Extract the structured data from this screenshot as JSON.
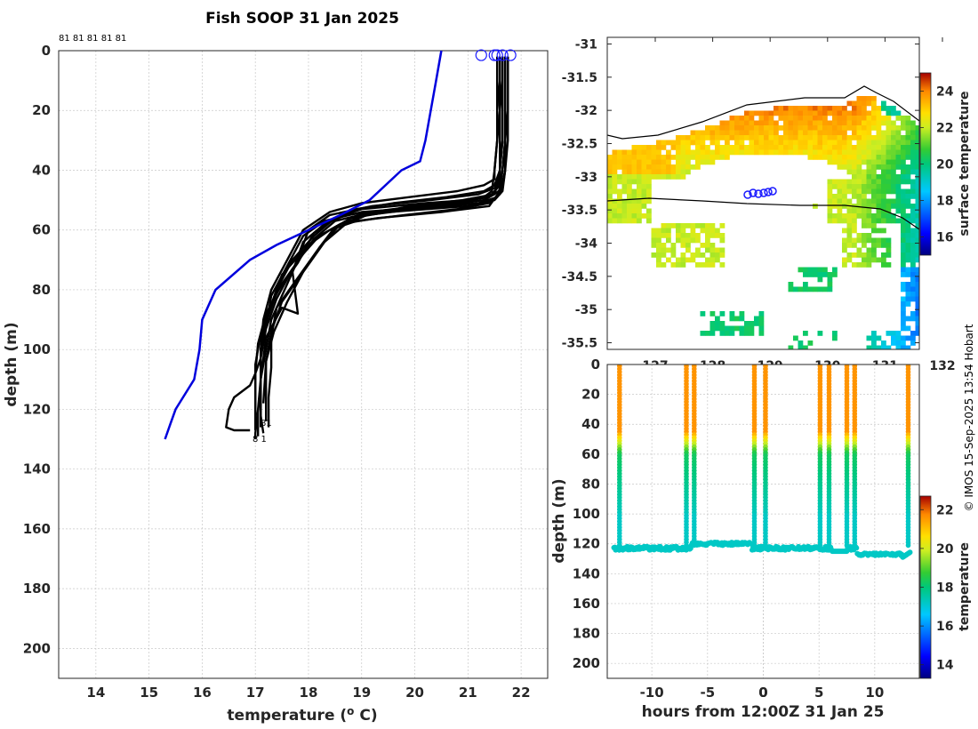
{
  "title": "Fish SOOP 31 Jan 2025",
  "copyright": "© IMOS 15-Sep-2025 13:54 Hobart",
  "chart_data": [
    {
      "type": "line",
      "name": "temperature-profiles",
      "xlabel": "temperature (o C)",
      "xlabel_main": "temperature (",
      "xlabel_sup": "o",
      "xlabel_end": " C)",
      "ylabel": "depth (m)",
      "xlim": [
        13.3,
        22.5
      ],
      "ylim": [
        0,
        210
      ],
      "xticks": [
        "14",
        "15",
        "16",
        "17",
        "18",
        "19",
        "20",
        "21",
        "22"
      ],
      "yticks": [
        "0",
        "20",
        "40",
        "60",
        "80",
        "100",
        "120",
        "140",
        "160",
        "180",
        "200"
      ],
      "top_labels": "81 81 81 81 81",
      "bottom_label_a": "81",
      "bottom_label_b": "8 1",
      "climatology": {
        "color": "#0000dd",
        "temperature": [
          20.5,
          20.4,
          20.3,
          20.2,
          20.1,
          19.75,
          19.15,
          18.6,
          18.0,
          17.4,
          16.9,
          16.25,
          16.0,
          15.95,
          15.85,
          15.5,
          15.4,
          15.3
        ],
        "depth": [
          0,
          10,
          20,
          30,
          37,
          40,
          50,
          55,
          60,
          65,
          70,
          80,
          90,
          100,
          110,
          120,
          125,
          130
        ]
      },
      "profiles": [
        {
          "temperature": [
            21.55,
            21.55,
            21.6,
            21.6,
            21.6,
            21.55,
            21.5,
            21.2,
            20.3,
            19.2,
            18.4,
            18.0,
            17.8,
            17.55,
            17.3,
            17.2,
            17.1,
            17.05,
            17.0,
            17.0
          ],
          "depth": [
            2,
            10,
            20,
            30,
            40,
            44,
            46,
            48,
            50,
            52,
            55,
            60,
            70,
            80,
            90,
            100,
            110,
            120,
            128,
            130
          ]
        },
        {
          "temperature": [
            21.65,
            21.65,
            21.65,
            21.65,
            21.6,
            21.55,
            21.5,
            21.3,
            20.5,
            19.0,
            18.3,
            17.9,
            17.6,
            17.3,
            17.2,
            17.1,
            17.1,
            17.1,
            17.15
          ],
          "depth": [
            2,
            10,
            20,
            30,
            40,
            45,
            48,
            50,
            52,
            54,
            57,
            62,
            72,
            82,
            92,
            102,
            112,
            122,
            128
          ]
        },
        {
          "temperature": [
            21.7,
            21.7,
            21.7,
            21.7,
            21.65,
            21.6,
            21.55,
            21.2,
            20.0,
            19.1,
            18.6,
            18.3,
            17.9,
            17.5,
            17.3,
            17.2,
            17.2,
            17.2
          ],
          "depth": [
            2,
            10,
            20,
            30,
            40,
            46,
            49,
            51,
            53,
            55,
            58,
            64,
            74,
            84,
            94,
            104,
            114,
            124
          ]
        },
        {
          "temperature": [
            21.75,
            21.75,
            21.75,
            21.7,
            21.7,
            21.65,
            21.5,
            21.0,
            19.5,
            18.8,
            18.5,
            18.2,
            17.8,
            17.4,
            17.3,
            17.3,
            17.25,
            17.25
          ],
          "depth": [
            2,
            10,
            20,
            30,
            40,
            47,
            50,
            52,
            54,
            56,
            59,
            66,
            76,
            86,
            96,
            106,
            116,
            126
          ]
        },
        {
          "temperature": [
            21.6,
            21.6,
            21.6,
            21.55,
            21.5,
            21.45,
            21.3,
            21.0,
            20.2,
            19.0,
            18.5,
            18.1,
            17.7,
            17.4,
            17.2,
            17.1,
            17.1,
            17.1
          ],
          "depth": [
            2,
            10,
            20,
            30,
            40,
            47,
            49,
            50,
            51,
            53,
            56,
            62,
            70,
            80,
            90,
            100,
            110,
            125
          ]
        },
        {
          "temperature": [
            21.7,
            21.7,
            21.7,
            21.7,
            21.7,
            21.6,
            21.4,
            20.8,
            19.8,
            18.9,
            18.4,
            18.0,
            17.5,
            17.3,
            17.1,
            17.0,
            17.0,
            17.0
          ],
          "depth": [
            2,
            10,
            20,
            30,
            40,
            48,
            51,
            53,
            55,
            57,
            60,
            65,
            75,
            85,
            95,
            105,
            115,
            127
          ]
        },
        {
          "temperature": [
            21.65,
            21.65,
            21.6,
            21.6,
            21.6,
            21.6,
            21.4,
            20.5,
            19.3,
            18.6,
            18.2,
            17.9,
            17.5,
            17.2,
            17.05,
            17.0,
            17.0
          ],
          "depth": [
            2,
            10,
            20,
            30,
            40,
            47,
            52,
            54,
            56,
            58,
            62,
            68,
            78,
            88,
            98,
            108,
            122
          ]
        },
        {
          "temperature": [
            21.75,
            21.75,
            21.75,
            21.75,
            21.7,
            21.65,
            21.5,
            20.9,
            19.9,
            19.1,
            18.7,
            18.3,
            17.9,
            17.6,
            17.35,
            17.2,
            17.15
          ],
          "depth": [
            2,
            10,
            20,
            30,
            40,
            46,
            48,
            50,
            52,
            55,
            58,
            64,
            74,
            84,
            94,
            104,
            118
          ]
        },
        {
          "temperature": [
            21.6,
            21.6,
            21.6,
            21.6,
            21.6,
            21.5,
            21.3,
            20.6,
            19.6,
            18.9,
            18.5,
            18.1,
            17.8,
            17.4,
            17.2,
            17.1,
            17.1,
            17.05,
            17.05
          ],
          "depth": [
            2,
            10,
            20,
            30,
            40,
            45,
            47,
            49,
            51,
            53,
            56,
            61,
            71,
            81,
            91,
            101,
            111,
            121,
            129
          ]
        },
        {
          "temperature": [
            21.55,
            21.55,
            21.55,
            21.55,
            21.5,
            21.5,
            21.3,
            20.8,
            19.9,
            19.0,
            18.4,
            17.9,
            17.6,
            17.3,
            17.15,
            17.1,
            17.1
          ],
          "depth": [
            2,
            10,
            20,
            30,
            40,
            43,
            45,
            47,
            49,
            51,
            54,
            60,
            70,
            80,
            90,
            100,
            112
          ]
        },
        {
          "temperature": [
            21.7,
            21.7,
            21.7,
            21.7,
            21.65,
            21.6,
            21.45,
            21.1,
            20.1,
            19.2,
            18.5,
            18.1,
            17.7,
            17.4,
            17.2,
            17.1,
            17.0,
            16.9,
            16.6,
            16.5,
            16.45,
            16.6,
            16.9
          ],
          "depth": [
            2,
            10,
            20,
            30,
            40,
            45,
            48,
            50,
            52,
            54,
            57,
            63,
            73,
            83,
            93,
            103,
            108,
            112,
            116,
            120,
            126,
            127,
            127
          ]
        },
        {
          "temperature": [
            21.65,
            21.65,
            21.65,
            21.65,
            21.6,
            21.55,
            21.4,
            20.7,
            19.6,
            18.7,
            18.3,
            17.9,
            17.7,
            17.8,
            17.5,
            17.2,
            17.1,
            17.1
          ],
          "depth": [
            2,
            10,
            20,
            30,
            40,
            46,
            49,
            51,
            53,
            55,
            58,
            64,
            74,
            88,
            86,
            96,
            110,
            126
          ]
        }
      ],
      "surface_markers_temperature": [
        21.25,
        21.5,
        21.55,
        21.65,
        21.8
      ]
    },
    {
      "type": "heatmap",
      "name": "surface-temperature-map",
      "ylim": [
        -35.6,
        -30.9
      ],
      "yticks": [
        "-31",
        "-31.5",
        "-32",
        "-32.5",
        "-33",
        "-33.5",
        "-34",
        "-34.5",
        "-35",
        "-35.5"
      ],
      "xticks": [
        "127",
        "128",
        "129",
        "130",
        "131",
        "132"
      ],
      "colorbar_label": "surface temperature",
      "colorbar_ticks": [
        "16",
        "18",
        "20",
        "22",
        "24"
      ],
      "colorbar_range": [
        15,
        25
      ]
    },
    {
      "type": "scatter",
      "name": "depth-time-section",
      "xlabel": "hours from 12:00Z 31 Jan 25",
      "ylabel": "depth (m)",
      "xlim": [
        -14,
        14
      ],
      "ylim": [
        0,
        210
      ],
      "xticks": [
        "-10",
        "-5",
        "0",
        "5",
        "10"
      ],
      "yticks": [
        "0",
        "20",
        "40",
        "60",
        "80",
        "100",
        "120",
        "140",
        "160",
        "180",
        "200"
      ],
      "colorbar_label": "temperature",
      "colorbar_ticks": [
        "14",
        "16",
        "18",
        "20",
        "22"
      ],
      "colorbar_range": [
        13.3,
        22.7
      ],
      "cast_hours": [
        -12.9,
        -6.9,
        -6.2,
        -0.8,
        0.2,
        5.1,
        5.9,
        7.5,
        8.2,
        13.0
      ],
      "bottom_depth_m": 123
    }
  ]
}
